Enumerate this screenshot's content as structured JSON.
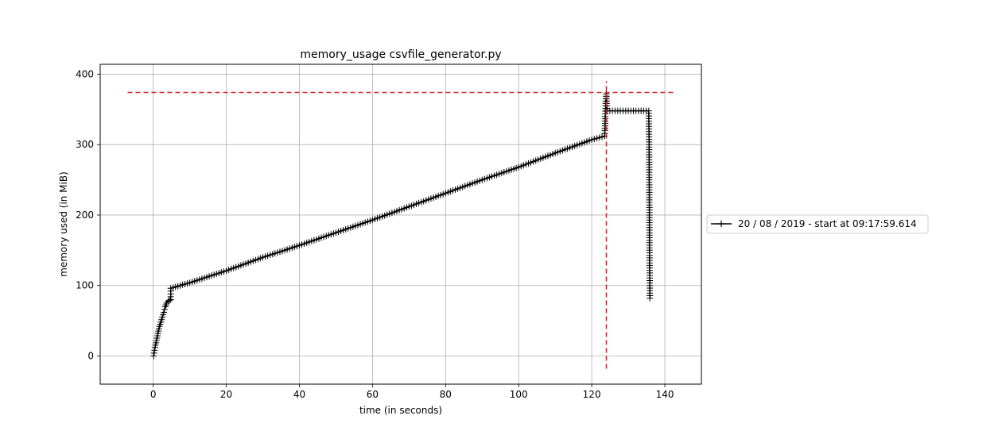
{
  "chart_data": {
    "type": "line",
    "title": "memory_usage csvfile_generator.py",
    "xlabel": "time (in seconds)",
    "ylabel": "memory used (in MiB)",
    "xlim": [
      -14.5,
      150
    ],
    "ylim": [
      -40,
      414
    ],
    "xticks": [
      0,
      20,
      40,
      60,
      80,
      100,
      120,
      140
    ],
    "yticks": [
      0,
      100,
      200,
      300,
      400
    ],
    "grid": true,
    "legend_placement": "outside-right",
    "colors": {
      "series": "#000000",
      "reference": "#d62728",
      "grid": "#b0b0b0"
    },
    "series": [
      {
        "name": "20 / 08 / 2019 - start at 09:17:59.614",
        "marker": "+",
        "x": [
          0.1,
          0.5,
          0.9,
          1.3,
          1.7,
          2.1,
          2.5,
          2.9,
          3.3,
          3.7,
          4.1,
          4.5,
          4.8,
          4.8,
          10,
          20,
          30,
          40,
          50,
          60,
          70,
          80,
          90,
          100,
          110,
          120,
          123.5,
          123.6,
          123.7,
          123.8,
          123.9,
          124.0,
          124.1,
          124.2,
          130,
          135.6,
          135.7,
          135.8,
          135.9
        ],
        "y": [
          0,
          12,
          22,
          32,
          42,
          48,
          55,
          62,
          70,
          75,
          78,
          79,
          80,
          96,
          104,
          121,
          140,
          157,
          175,
          193,
          212,
          231,
          250,
          268,
          288,
          307,
          312,
          320,
          340,
          355,
          365,
          372,
          355,
          348,
          348,
          348,
          300,
          150,
          82
        ]
      }
    ],
    "reference_lines": [
      {
        "orientation": "horizontal",
        "y": 374,
        "x_from": -7,
        "x_to": 143
      },
      {
        "orientation": "vertical",
        "x": 124,
        "y_from": -18,
        "y_to": 390
      }
    ]
  }
}
